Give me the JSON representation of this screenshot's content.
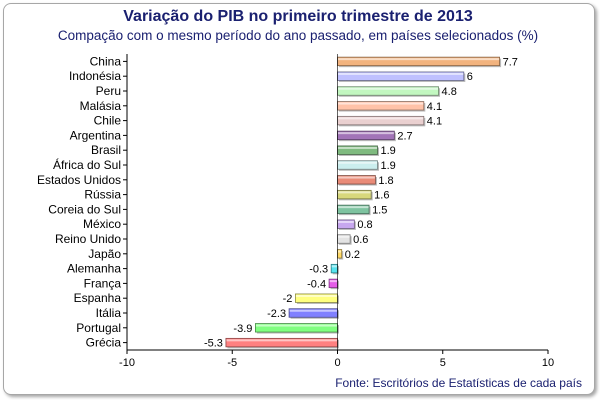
{
  "chart_data": {
    "type": "bar",
    "orientation": "horizontal",
    "title": "Variação do PIB no primeiro trimestre de 2013",
    "subtitle": "Compação com o mesmo período do ano passado, em países selecionados (%)",
    "source": "Fonte: Escritórios de Estatísticas de cada país",
    "xlim": [
      -10,
      10
    ],
    "xticks": [
      "-10",
      "-5",
      "0",
      "5",
      "10"
    ],
    "grid": false,
    "categories": [
      "China",
      "Indonésia",
      "Peru",
      "Malásia",
      "Chile",
      "Argentina",
      "Brasil",
      "África do Sul",
      "Estados Unidos",
      "Rússia",
      "Coreia do Sul",
      "México",
      "Reino Unido",
      "Japão",
      "Alemanha",
      "França",
      "Espanha",
      "Itália",
      "Portugal",
      "Grécia"
    ],
    "values": [
      7.7,
      6,
      4.8,
      4.1,
      4.1,
      2.7,
      1.9,
      1.9,
      1.8,
      1.6,
      1.5,
      0.8,
      0.6,
      0.2,
      -0.3,
      -0.4,
      -2,
      -2.3,
      -3.9,
      -5.3
    ],
    "value_labels": [
      "7.7",
      "6",
      "4.8",
      "4.1",
      "4.1",
      "2.7",
      "1.9",
      "1.9",
      "1.8",
      "1.6",
      "1.5",
      "0.8",
      "0.6",
      "0.2",
      "-0.3",
      "-0.4",
      "-2",
      "-2.3",
      "-3.9",
      "-5.3"
    ],
    "colors": [
      "#f2b37e",
      "#bfc0ff",
      "#c2f7c0",
      "#ffc2a8",
      "#ead0d0",
      "#a274b8",
      "#7fba7f",
      "#cbeeee",
      "#e98b78",
      "#d8d87c",
      "#7ec3a0",
      "#c7a7ef",
      "#e3e3e3",
      "#ffd966",
      "#56e3ee",
      "#e45ce8",
      "#ffff80",
      "#8080ff",
      "#80ff80",
      "#ff8080"
    ]
  }
}
